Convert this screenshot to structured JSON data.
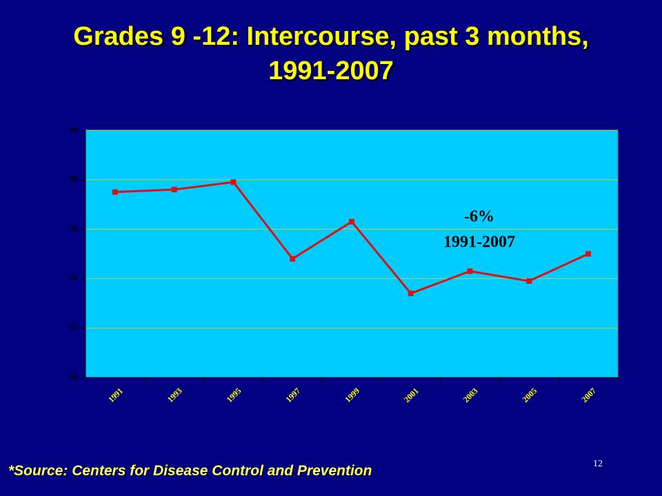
{
  "chart_data": {
    "type": "line",
    "title": "Grades 9 -12:  Intercourse, past 3 months, 1991-2007",
    "categories": [
      "1991",
      "1993",
      "1995",
      "1997",
      "1999",
      "2001",
      "2003",
      "2005",
      "2007"
    ],
    "values": [
      37.5,
      37.6,
      37.9,
      34.8,
      36.3,
      33.4,
      34.3,
      33.9,
      35.0
    ],
    "color": "#dd1111",
    "ylim": [
      30,
      40
    ],
    "yticks": [
      30,
      32,
      34,
      36,
      38,
      40
    ],
    "grid": true,
    "annotations": [
      "-6%",
      "1991-2007"
    ],
    "source": "*Source: Centers for Disease Control and Prevention",
    "page_number": "12"
  }
}
